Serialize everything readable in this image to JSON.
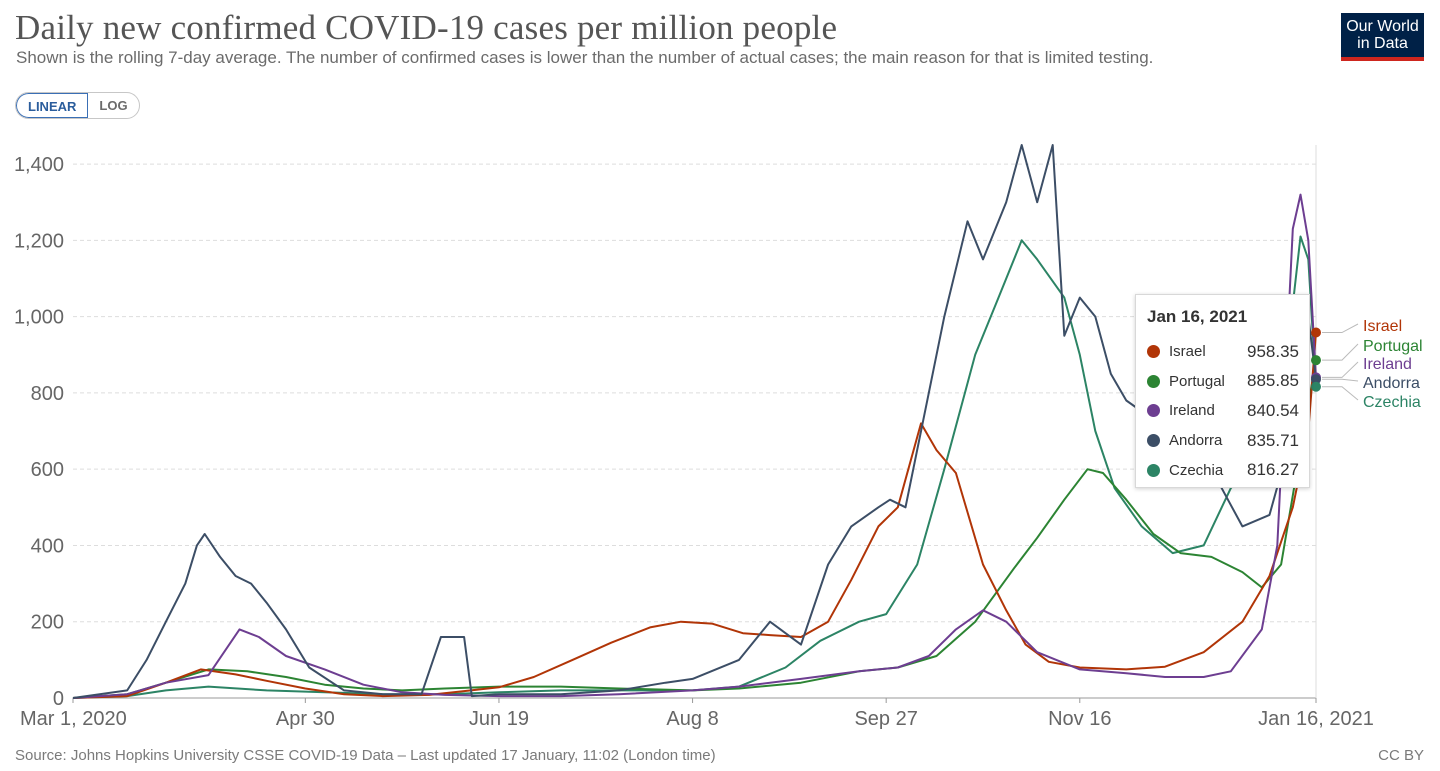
{
  "title": "Daily new confirmed COVID-19 cases per million people",
  "subtitle": "Shown is the rolling 7-day average. The number of confirmed cases is lower than the number of actual cases; the main reason for that is limited testing.",
  "logo": {
    "line1": "Our World",
    "line2": "in Data",
    "bg": "#002147",
    "accent": "#ce261e"
  },
  "scale_toggle": {
    "linear": "LINEAR",
    "log": "LOG",
    "selected": "LINEAR"
  },
  "tooltip": {
    "date": "Jan 16, 2021",
    "rows": [
      {
        "name": "Israel",
        "value": "958.35",
        "color": "#b13507"
      },
      {
        "name": "Portugal",
        "value": "885.85",
        "color": "#2c8433"
      },
      {
        "name": "Ireland",
        "value": "840.54",
        "color": "#6d3e91"
      },
      {
        "name": "Andorra",
        "value": "835.71",
        "color": "#3c4e66"
      },
      {
        "name": "Czechia",
        "value": "816.27",
        "color": "#2c8465"
      }
    ]
  },
  "footer": {
    "source": "Source: Johns Hopkins University CSSE COVID-19 Data – Last updated 17 January, 11:02 (London time)",
    "license": "CC BY"
  },
  "chart_data": {
    "type": "line",
    "title": "Daily new confirmed COVID-19 cases per million people",
    "y_scale": "linear",
    "ylim": [
      0,
      1450
    ],
    "yticks": [
      0,
      200,
      400,
      600,
      800,
      1000,
      1200,
      1400
    ],
    "ytick_labels": [
      "0",
      "200",
      "400",
      "600",
      "800",
      "1,000",
      "1,200",
      "1,400"
    ],
    "xlim": [
      "2020-03-01",
      "2021-01-16"
    ],
    "xticks": [
      "2020-03-01",
      "2020-04-30",
      "2020-06-19",
      "2020-08-08",
      "2020-09-27",
      "2020-11-16",
      "2021-01-16"
    ],
    "xtick_labels": [
      "Mar 1, 2020",
      "Apr 30",
      "Jun 19",
      "Aug 8",
      "Sep 27",
      "Nov 16",
      "Jan 16, 2021"
    ],
    "grid": "horizontal dashed",
    "legend": "right end labels",
    "series": [
      {
        "name": "Israel",
        "color": "#b13507",
        "points": [
          [
            "2020-03-01",
            0
          ],
          [
            "2020-03-15",
            5
          ],
          [
            "2020-03-25",
            40
          ],
          [
            "2020-04-03",
            75
          ],
          [
            "2020-04-12",
            62
          ],
          [
            "2020-04-20",
            45
          ],
          [
            "2020-04-30",
            25
          ],
          [
            "2020-05-10",
            10
          ],
          [
            "2020-05-20",
            5
          ],
          [
            "2020-06-01",
            8
          ],
          [
            "2020-06-10",
            18
          ],
          [
            "2020-06-19",
            28
          ],
          [
            "2020-06-28",
            55
          ],
          [
            "2020-07-08",
            100
          ],
          [
            "2020-07-18",
            145
          ],
          [
            "2020-07-28",
            185
          ],
          [
            "2020-08-05",
            200
          ],
          [
            "2020-08-13",
            195
          ],
          [
            "2020-08-21",
            170
          ],
          [
            "2020-08-28",
            165
          ],
          [
            "2020-09-05",
            160
          ],
          [
            "2020-09-12",
            200
          ],
          [
            "2020-09-18",
            310
          ],
          [
            "2020-09-25",
            450
          ],
          [
            "2020-09-30",
            500
          ],
          [
            "2020-10-06",
            720
          ],
          [
            "2020-10-10",
            650
          ],
          [
            "2020-10-15",
            590
          ],
          [
            "2020-10-22",
            350
          ],
          [
            "2020-10-28",
            230
          ],
          [
            "2020-11-02",
            140
          ],
          [
            "2020-11-08",
            95
          ],
          [
            "2020-11-16",
            80
          ],
          [
            "2020-11-28",
            75
          ],
          [
            "2020-12-08",
            82
          ],
          [
            "2020-12-18",
            120
          ],
          [
            "2020-12-28",
            200
          ],
          [
            "2021-01-04",
            320
          ],
          [
            "2021-01-10",
            500
          ],
          [
            "2021-01-14",
            700
          ],
          [
            "2021-01-16",
            958.35
          ]
        ]
      },
      {
        "name": "Portugal",
        "color": "#2c8433",
        "points": [
          [
            "2020-03-01",
            0
          ],
          [
            "2020-03-15",
            10
          ],
          [
            "2020-03-25",
            40
          ],
          [
            "2020-04-05",
            75
          ],
          [
            "2020-04-15",
            70
          ],
          [
            "2020-04-25",
            55
          ],
          [
            "2020-05-05",
            35
          ],
          [
            "2020-05-15",
            25
          ],
          [
            "2020-05-25",
            20
          ],
          [
            "2020-06-05",
            25
          ],
          [
            "2020-06-19",
            30
          ],
          [
            "2020-07-05",
            30
          ],
          [
            "2020-07-20",
            25
          ],
          [
            "2020-08-08",
            20
          ],
          [
            "2020-08-20",
            25
          ],
          [
            "2020-09-05",
            40
          ],
          [
            "2020-09-20",
            70
          ],
          [
            "2020-09-30",
            80
          ],
          [
            "2020-10-10",
            110
          ],
          [
            "2020-10-20",
            200
          ],
          [
            "2020-10-30",
            340
          ],
          [
            "2020-11-05",
            420
          ],
          [
            "2020-11-12",
            520
          ],
          [
            "2020-11-18",
            600
          ],
          [
            "2020-11-22",
            590
          ],
          [
            "2020-11-28",
            520
          ],
          [
            "2020-12-05",
            430
          ],
          [
            "2020-12-12",
            380
          ],
          [
            "2020-12-20",
            370
          ],
          [
            "2020-12-28",
            330
          ],
          [
            "2021-01-02",
            290
          ],
          [
            "2021-01-07",
            350
          ],
          [
            "2021-01-12",
            650
          ],
          [
            "2021-01-16",
            885.85
          ]
        ]
      },
      {
        "name": "Ireland",
        "color": "#6d3e91",
        "points": [
          [
            "2020-03-01",
            0
          ],
          [
            "2020-03-15",
            10
          ],
          [
            "2020-03-25",
            40
          ],
          [
            "2020-04-05",
            60
          ],
          [
            "2020-04-13",
            180
          ],
          [
            "2020-04-18",
            160
          ],
          [
            "2020-04-25",
            110
          ],
          [
            "2020-05-05",
            75
          ],
          [
            "2020-05-15",
            35
          ],
          [
            "2020-05-25",
            15
          ],
          [
            "2020-06-05",
            8
          ],
          [
            "2020-06-19",
            5
          ],
          [
            "2020-07-05",
            5
          ],
          [
            "2020-07-20",
            10
          ],
          [
            "2020-08-08",
            20
          ],
          [
            "2020-08-20",
            30
          ],
          [
            "2020-09-05",
            50
          ],
          [
            "2020-09-20",
            70
          ],
          [
            "2020-09-30",
            80
          ],
          [
            "2020-10-08",
            110
          ],
          [
            "2020-10-15",
            180
          ],
          [
            "2020-10-22",
            230
          ],
          [
            "2020-10-28",
            200
          ],
          [
            "2020-11-05",
            120
          ],
          [
            "2020-11-16",
            75
          ],
          [
            "2020-11-28",
            65
          ],
          [
            "2020-12-08",
            55
          ],
          [
            "2020-12-18",
            55
          ],
          [
            "2020-12-25",
            70
          ],
          [
            "2021-01-02",
            180
          ],
          [
            "2021-01-06",
            400
          ],
          [
            "2021-01-10",
            1230
          ],
          [
            "2021-01-12",
            1320
          ],
          [
            "2021-01-14",
            1200
          ],
          [
            "2021-01-16",
            840.54
          ]
        ]
      },
      {
        "name": "Andorra",
        "color": "#3c4e66",
        "points": [
          [
            "2020-03-01",
            0
          ],
          [
            "2020-03-15",
            20
          ],
          [
            "2020-03-20",
            100
          ],
          [
            "2020-03-25",
            200
          ],
          [
            "2020-03-30",
            300
          ],
          [
            "2020-04-02",
            400
          ],
          [
            "2020-04-04",
            430
          ],
          [
            "2020-04-08",
            370
          ],
          [
            "2020-04-12",
            320
          ],
          [
            "2020-04-16",
            300
          ],
          [
            "2020-04-20",
            250
          ],
          [
            "2020-04-25",
            180
          ],
          [
            "2020-05-01",
            80
          ],
          [
            "2020-05-10",
            20
          ],
          [
            "2020-05-20",
            10
          ],
          [
            "2020-05-30",
            10
          ],
          [
            "2020-06-04",
            160
          ],
          [
            "2020-06-10",
            160
          ],
          [
            "2020-06-12",
            5
          ],
          [
            "2020-06-19",
            10
          ],
          [
            "2020-07-05",
            10
          ],
          [
            "2020-07-20",
            20
          ],
          [
            "2020-08-01",
            40
          ],
          [
            "2020-08-08",
            50
          ],
          [
            "2020-08-20",
            100
          ],
          [
            "2020-08-28",
            200
          ],
          [
            "2020-09-05",
            140
          ],
          [
            "2020-09-12",
            350
          ],
          [
            "2020-09-18",
            450
          ],
          [
            "2020-09-25",
            500
          ],
          [
            "2020-09-28",
            520
          ],
          [
            "2020-10-02",
            500
          ],
          [
            "2020-10-08",
            800
          ],
          [
            "2020-10-12",
            1000
          ],
          [
            "2020-10-18",
            1250
          ],
          [
            "2020-10-22",
            1150
          ],
          [
            "2020-10-28",
            1300
          ],
          [
            "2020-11-01",
            1450
          ],
          [
            "2020-11-05",
            1300
          ],
          [
            "2020-11-09",
            1450
          ],
          [
            "2020-11-12",
            950
          ],
          [
            "2020-11-16",
            1050
          ],
          [
            "2020-11-20",
            1000
          ],
          [
            "2020-11-24",
            850
          ],
          [
            "2020-11-28",
            780
          ],
          [
            "2020-12-05",
            730
          ],
          [
            "2020-12-12",
            750
          ],
          [
            "2020-12-20",
            600
          ],
          [
            "2020-12-28",
            450
          ],
          [
            "2021-01-04",
            480
          ],
          [
            "2021-01-10",
            700
          ],
          [
            "2021-01-14",
            1000
          ],
          [
            "2021-01-16",
            835.71
          ]
        ]
      },
      {
        "name": "Czechia",
        "color": "#2c8465",
        "points": [
          [
            "2020-03-01",
            0
          ],
          [
            "2020-03-15",
            5
          ],
          [
            "2020-03-25",
            20
          ],
          [
            "2020-04-05",
            30
          ],
          [
            "2020-04-20",
            20
          ],
          [
            "2020-05-05",
            15
          ],
          [
            "2020-05-20",
            10
          ],
          [
            "2020-06-05",
            10
          ],
          [
            "2020-06-19",
            15
          ],
          [
            "2020-07-05",
            20
          ],
          [
            "2020-07-20",
            20
          ],
          [
            "2020-08-08",
            20
          ],
          [
            "2020-08-20",
            30
          ],
          [
            "2020-09-01",
            80
          ],
          [
            "2020-09-10",
            150
          ],
          [
            "2020-09-20",
            200
          ],
          [
            "2020-09-27",
            220
          ],
          [
            "2020-10-05",
            350
          ],
          [
            "2020-10-12",
            600
          ],
          [
            "2020-10-20",
            900
          ],
          [
            "2020-10-26",
            1050
          ],
          [
            "2020-11-01",
            1200
          ],
          [
            "2020-11-05",
            1150
          ],
          [
            "2020-11-12",
            1050
          ],
          [
            "2020-11-16",
            900
          ],
          [
            "2020-11-20",
            700
          ],
          [
            "2020-11-25",
            550
          ],
          [
            "2020-12-02",
            450
          ],
          [
            "2020-12-10",
            380
          ],
          [
            "2020-12-18",
            400
          ],
          [
            "2020-12-25",
            550
          ],
          [
            "2021-01-02",
            650
          ],
          [
            "2021-01-08",
            850
          ],
          [
            "2021-01-12",
            1210
          ],
          [
            "2021-01-14",
            1150
          ],
          [
            "2021-01-16",
            816.27
          ]
        ]
      }
    ]
  }
}
